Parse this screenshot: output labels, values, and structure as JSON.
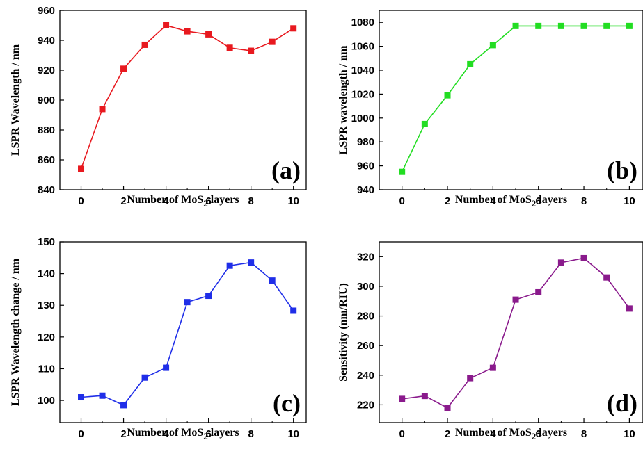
{
  "chart_data": [
    {
      "type": "line",
      "panel_label": "(a)",
      "xlabel": "Number of MoS",
      "xlabel_sub": "2",
      "xlabel_tail": " layers",
      "ylabel": "LSPR Wavelength / nm",
      "xlim": [
        -1,
        10.6
      ],
      "ylim": [
        840,
        960
      ],
      "xticks": [
        0,
        2,
        4,
        6,
        8,
        10
      ],
      "yticks": [
        840,
        860,
        880,
        900,
        920,
        940,
        960
      ],
      "color": "#e8191f",
      "x": [
        0,
        1,
        2,
        3,
        4,
        5,
        6,
        7,
        8,
        9,
        10
      ],
      "y": [
        854,
        894,
        921,
        937,
        950,
        946,
        944,
        935,
        933,
        939,
        948
      ]
    },
    {
      "type": "line",
      "panel_label": "(b)",
      "xlabel": "Number of MoS",
      "xlabel_sub": "2",
      "xlabel_tail": " layers",
      "ylabel": "LSPR wavelength / nm",
      "xlim": [
        -1,
        10.6
      ],
      "ylim": [
        940,
        1090
      ],
      "xticks": [
        0,
        2,
        4,
        6,
        8,
        10
      ],
      "yticks": [
        940,
        960,
        980,
        1000,
        1020,
        1040,
        1060,
        1080
      ],
      "color": "#22dd22",
      "x": [
        0,
        1,
        2,
        3,
        4,
        5,
        6,
        7,
        8,
        9,
        10
      ],
      "y": [
        955,
        995,
        1019,
        1045,
        1061,
        1077,
        1077,
        1077,
        1077,
        1077,
        1077
      ]
    },
    {
      "type": "line",
      "panel_label": "(c)",
      "xlabel": "Number of MoS",
      "xlabel_sub": "2",
      "xlabel_tail": " layers",
      "ylabel": "LSPR Wavelength change / nm",
      "xlim": [
        -1,
        10.6
      ],
      "ylim": [
        93,
        150
      ],
      "xticks": [
        0,
        2,
        4,
        6,
        8,
        10
      ],
      "yticks": [
        100,
        110,
        120,
        130,
        140,
        150
      ],
      "color": "#1f2ee8",
      "x": [
        0,
        1,
        2,
        3,
        4,
        5,
        6,
        7,
        8,
        9,
        10
      ],
      "y": [
        101,
        101.5,
        98.5,
        107.2,
        110.3,
        131,
        133,
        142.5,
        143.5,
        137.8,
        128.3
      ]
    },
    {
      "type": "line",
      "panel_label": "(d)",
      "xlabel": "Number of MoS",
      "xlabel_sub": "2",
      "xlabel_tail": " layers",
      "ylabel": "Sensitivity (nm/RIU)",
      "xlim": [
        -1,
        10.6
      ],
      "ylim": [
        208,
        330
      ],
      "xticks": [
        0,
        2,
        4,
        6,
        8,
        10
      ],
      "yticks": [
        220,
        240,
        260,
        280,
        300,
        320
      ],
      "color": "#8a1a8c",
      "x": [
        0,
        1,
        2,
        3,
        4,
        5,
        6,
        7,
        8,
        9,
        10
      ],
      "y": [
        224,
        226,
        218,
        238,
        245,
        291,
        296,
        316,
        319,
        306,
        285
      ]
    }
  ]
}
